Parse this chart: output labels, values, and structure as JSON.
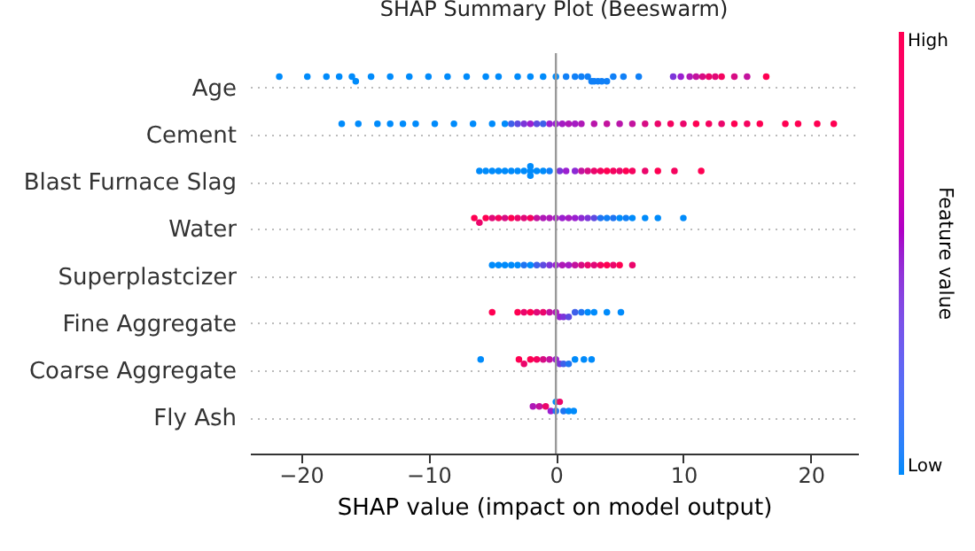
{
  "chart_data": {
    "type": "scatter",
    "orientation": "horizontal",
    "title": "SHAP Summary Plot (Beeswarm)",
    "xlabel": "SHAP value (impact on model output)",
    "clabel": "Feature value",
    "annotations": [
      "Low",
      "High"
    ],
    "categories": [
      "Age",
      "Cement",
      "Blast Furnace Slag",
      "Water",
      "Superplastcizer",
      "Fine Aggregate",
      "Coarse Aggregate",
      "Fly Ash"
    ],
    "xlim": [
      -24,
      23.7
    ],
    "xticks": [
      -20,
      -10,
      0,
      10,
      20
    ],
    "grid": "y",
    "ref_lines": [
      {
        "axis": "x",
        "value": 0,
        "color": "#999999"
      }
    ],
    "series": [
      {
        "x": [
          "Age",
          "Age",
          "Age",
          "Age",
          "Age",
          "Age",
          "Age",
          "Age",
          "Age",
          "Age",
          "Age",
          "Age",
          "Age",
          "Age",
          "Age",
          "Age",
          "Age",
          "Age",
          "Age",
          "Age",
          "Age",
          "Age",
          "Age",
          "Age",
          "Age",
          "Age",
          "Age",
          "Age",
          "Age",
          "Age",
          "Age",
          "Age",
          "Age",
          "Age",
          "Age",
          "Age",
          "Age",
          "Age",
          "Age",
          "Age",
          "Age"
        ],
        "values": [
          -21.7,
          -19.5,
          -18,
          -17,
          -16,
          -15.7,
          -14.5,
          -13,
          -11.5,
          -10,
          -8.5,
          -7,
          -5.5,
          -4.5,
          -3,
          -2,
          -1,
          0,
          0.8,
          1.5,
          2,
          2.5,
          2.8,
          3,
          3.3,
          3.6,
          4,
          4.5,
          5.3,
          6.5,
          9.2,
          9.8,
          10.5,
          11,
          11.5,
          12,
          12.5,
          13,
          14,
          15,
          16.5
        ],
        "colors": [
          "#008bfb",
          "#008bfb",
          "#008bfb",
          "#008bfb",
          "#008bfb",
          "#008bfb",
          "#008bfb",
          "#008bfb",
          "#008bfb",
          "#008bfb",
          "#008bfb",
          "#008bfb",
          "#008bfb",
          "#008bfb",
          "#008bfb",
          "#008bfb",
          "#008bfb",
          "#008bfb",
          "#1080f7",
          "#1080f7",
          "#1080f7",
          "#1080f7",
          "#1080f7",
          "#1080f7",
          "#1080f7",
          "#1080f7",
          "#1080f7",
          "#1080f7",
          "#1080f7",
          "#1080f7",
          "#7c35d9",
          "#9b1fd0",
          "#af19b7",
          "#c3139e",
          "#d70c84",
          "#eb066b",
          "#e10978",
          "#f5035f",
          "#d70c84",
          "#c3139e",
          "#ff0052"
        ]
      },
      {
        "x": [
          "Cement",
          "Cement",
          "Cement",
          "Cement",
          "Cement",
          "Cement",
          "Cement",
          "Cement",
          "Cement",
          "Cement",
          "Cement",
          "Cement",
          "Cement",
          "Cement",
          "Cement",
          "Cement",
          "Cement",
          "Cement",
          "Cement",
          "Cement",
          "Cement",
          "Cement",
          "Cement",
          "Cement",
          "Cement",
          "Cement",
          "Cement",
          "Cement",
          "Cement",
          "Cement",
          "Cement",
          "Cement",
          "Cement",
          "Cement",
          "Cement",
          "Cement",
          "Cement",
          "Cement",
          "Cement",
          "Cement",
          "Cement"
        ],
        "values": [
          -16.8,
          -15.5,
          -14,
          -13,
          -12,
          -11,
          -9.5,
          -8,
          -6.5,
          -5,
          -4,
          -3.5,
          -3,
          -2.5,
          -2,
          -1.5,
          -1,
          -0.5,
          0,
          0.5,
          1,
          1.5,
          2,
          3,
          4,
          5,
          6,
          7,
          8,
          9,
          10,
          11,
          12,
          13,
          14,
          15,
          16,
          18,
          19,
          20.5,
          21.8
        ],
        "colors": [
          "#008bfb",
          "#008bfb",
          "#008bfb",
          "#008bfb",
          "#008bfb",
          "#008bfb",
          "#008bfb",
          "#008bfb",
          "#008bfb",
          "#008bfb",
          "#008bfb",
          "#3e60ea",
          "#5d4ae1",
          "#7c35d9",
          "#9b1fd0",
          "#5d4ae1",
          "#3e60ea",
          "#9b1fd0",
          "#9b1fd0",
          "#a51cc3",
          "#af19b7",
          "#a51cc3",
          "#af19b7",
          "#b916aa",
          "#c3139e",
          "#b916aa",
          "#c3139e",
          "#d70c84",
          "#eb066b",
          "#f5035f",
          "#eb066b",
          "#ff0052",
          "#f5035f",
          "#eb066b",
          "#ff0052",
          "#f5035f",
          "#ff0052",
          "#ff0052",
          "#ff0052",
          "#ff0052",
          "#ff0052"
        ]
      },
      {
        "x": [
          "Blast Furnace Slag",
          "Blast Furnace Slag",
          "Blast Furnace Slag",
          "Blast Furnace Slag",
          "Blast Furnace Slag",
          "Blast Furnace Slag",
          "Blast Furnace Slag",
          "Blast Furnace Slag",
          "Blast Furnace Slag",
          "Blast Furnace Slag",
          "Blast Furnace Slag",
          "Blast Furnace Slag",
          "Blast Furnace Slag",
          "Blast Furnace Slag",
          "Blast Furnace Slag",
          "Blast Furnace Slag",
          "Blast Furnace Slag",
          "Blast Furnace Slag",
          "Blast Furnace Slag",
          "Blast Furnace Slag",
          "Blast Furnace Slag",
          "Blast Furnace Slag",
          "Blast Furnace Slag",
          "Blast Furnace Slag",
          "Blast Furnace Slag",
          "Blast Furnace Slag",
          "Blast Furnace Slag",
          "Blast Furnace Slag",
          "Blast Furnace Slag",
          "Blast Furnace Slag"
        ],
        "values": [
          -6,
          -5.5,
          -5,
          -4.5,
          -4,
          -3.5,
          -3,
          -2.5,
          -2,
          -2,
          -2,
          -1.5,
          -1,
          -0.5,
          0.3,
          0.8,
          1.5,
          2,
          2.5,
          3,
          3.5,
          4,
          4.5,
          5,
          5.5,
          6,
          7,
          8,
          9.3,
          11.4
        ],
        "colors": [
          "#008bfb",
          "#008bfb",
          "#008bfb",
          "#008bfb",
          "#008bfb",
          "#008bfb",
          "#008bfb",
          "#008bfb",
          "#008bfb",
          "#008bfb",
          "#008bfb",
          "#008bfb",
          "#008bfb",
          "#1080f7",
          "#7c35d9",
          "#9b1fd0",
          "#8c2ad4",
          "#c3139e",
          "#d70c84",
          "#eb066b",
          "#f5035f",
          "#ff0052",
          "#f5035f",
          "#eb066b",
          "#ff0052",
          "#f5035f",
          "#eb066b",
          "#ff0052",
          "#f5035f",
          "#ff0052"
        ]
      },
      {
        "x": [
          "Water",
          "Water",
          "Water",
          "Water",
          "Water",
          "Water",
          "Water",
          "Water",
          "Water",
          "Water",
          "Water",
          "Water",
          "Water",
          "Water",
          "Water",
          "Water",
          "Water",
          "Water",
          "Water",
          "Water",
          "Water",
          "Water",
          "Water",
          "Water",
          "Water",
          "Water",
          "Water",
          "Water",
          "Water"
        ],
        "values": [
          -6.4,
          -6,
          -5.5,
          -5,
          -4.5,
          -4,
          -3.5,
          -3,
          -2.5,
          -2,
          -1.5,
          -1,
          -0.5,
          0,
          0.5,
          1,
          1.5,
          2,
          2.5,
          3,
          3.5,
          4,
          4.5,
          5,
          5.5,
          6,
          7,
          8,
          10
        ],
        "colors": [
          "#ff0052",
          "#eb066b",
          "#ff0052",
          "#e10978",
          "#f5035f",
          "#d70c84",
          "#ff0052",
          "#eb066b",
          "#e10978",
          "#f5035f",
          "#c3139e",
          "#af19b7",
          "#af19b7",
          "#a51cc3",
          "#9b1fd0",
          "#a51cc3",
          "#9b1fd0",
          "#8c2ad4",
          "#7c35d9",
          "#5d4ae1",
          "#1f75f2",
          "#1080f7",
          "#1f75f2",
          "#008bfb",
          "#1080f7",
          "#008bfb",
          "#008bfb",
          "#008bfb",
          "#008bfb"
        ]
      },
      {
        "x": [
          "Superplastcizer",
          "Superplastcizer",
          "Superplastcizer",
          "Superplastcizer",
          "Superplastcizer",
          "Superplastcizer",
          "Superplastcizer",
          "Superplastcizer",
          "Superplastcizer",
          "Superplastcizer",
          "Superplastcizer",
          "Superplastcizer",
          "Superplastcizer",
          "Superplastcizer",
          "Superplastcizer",
          "Superplastcizer",
          "Superplastcizer",
          "Superplastcizer",
          "Superplastcizer",
          "Superplastcizer",
          "Superplastcizer",
          "Superplastcizer"
        ],
        "values": [
          -5,
          -4.5,
          -4,
          -3.5,
          -3,
          -2.5,
          -2,
          -1.5,
          -1,
          -0.5,
          0,
          0.5,
          1,
          1.5,
          2,
          2.5,
          3,
          3.5,
          4,
          4.5,
          5,
          6
        ],
        "colors": [
          "#008bfb",
          "#008bfb",
          "#008bfb",
          "#008bfb",
          "#008bfb",
          "#1f75f2",
          "#008bfb",
          "#3e60ea",
          "#5d4ae1",
          "#7c35d9",
          "#9b1fd0",
          "#af19b7",
          "#a51cc3",
          "#c3139e",
          "#d70c84",
          "#eb066b",
          "#e10978",
          "#f5035f",
          "#ff0052",
          "#eb066b",
          "#ff0052",
          "#eb066b"
        ]
      },
      {
        "x": [
          "Fine Aggregate",
          "Fine Aggregate",
          "Fine Aggregate",
          "Fine Aggregate",
          "Fine Aggregate",
          "Fine Aggregate",
          "Fine Aggregate",
          "Fine Aggregate",
          "Fine Aggregate",
          "Fine Aggregate",
          "Fine Aggregate",
          "Fine Aggregate",
          "Fine Aggregate",
          "Fine Aggregate",
          "Fine Aggregate",
          "Fine Aggregate",
          "Fine Aggregate"
        ],
        "values": [
          -5,
          -3,
          -2.5,
          -2,
          -1.5,
          -1,
          -0.5,
          0,
          0.3,
          0.6,
          1,
          1.5,
          2,
          2.5,
          3,
          4,
          5.1
        ],
        "colors": [
          "#ff0052",
          "#ff0052",
          "#eb066b",
          "#ff0052",
          "#e10978",
          "#eb066b",
          "#c3139e",
          "#af19b7",
          "#9b1fd0",
          "#7c35d9",
          "#5d4ae1",
          "#3e60ea",
          "#1f75f2",
          "#008bfb",
          "#008bfb",
          "#008bfb",
          "#008bfb"
        ]
      },
      {
        "x": [
          "Coarse Aggregate",
          "Coarse Aggregate",
          "Coarse Aggregate",
          "Coarse Aggregate",
          "Coarse Aggregate",
          "Coarse Aggregate",
          "Coarse Aggregate",
          "Coarse Aggregate",
          "Coarse Aggregate",
          "Coarse Aggregate",
          "Coarse Aggregate",
          "Coarse Aggregate",
          "Coarse Aggregate",
          "Coarse Aggregate"
        ],
        "values": [
          -5.9,
          -2.9,
          -2.5,
          -2,
          -1.5,
          -1,
          -0.5,
          0,
          0.3,
          0.6,
          1,
          1.5,
          2.2,
          2.8
        ],
        "colors": [
          "#008bfb",
          "#ff0052",
          "#eb066b",
          "#ff0052",
          "#f5035f",
          "#d70c84",
          "#c3139e",
          "#9b1fd0",
          "#7c35d9",
          "#3e60ea",
          "#1f75f2",
          "#008bfb",
          "#008bfb",
          "#008bfb"
        ]
      },
      {
        "x": [
          "Fly Ash",
          "Fly Ash",
          "Fly Ash",
          "Fly Ash",
          "Fly Ash",
          "Fly Ash",
          "Fly Ash",
          "Fly Ash",
          "Fly Ash",
          "Fly Ash"
        ],
        "values": [
          -1.8,
          -1.3,
          -0.8,
          -0.4,
          0,
          0,
          0.3,
          0.6,
          1,
          1.4
        ],
        "colors": [
          "#af19b7",
          "#c3139e",
          "#eb066b",
          "#9b1fd0",
          "#1f75f2",
          "#008bfb",
          "#eb066b",
          "#1f75f2",
          "#008bfb",
          "#008bfb"
        ]
      }
    ]
  }
}
